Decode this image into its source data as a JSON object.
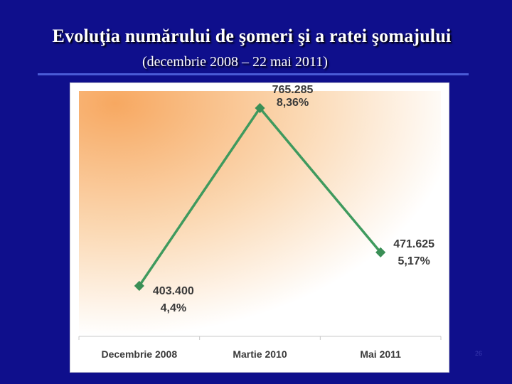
{
  "slide": {
    "title": "Evoluţia numărului de şomeri şi a ratei şomajului",
    "subtitle": "(decembrie 2008 – 22 mai 2011)",
    "page_number": "26"
  },
  "colors": {
    "background": "#0f0f8c",
    "line": "#3f9a5e",
    "marker": "#3a8f56"
  },
  "chart_data": {
    "type": "line",
    "categories": [
      "Decembrie 2008",
      "Martie 2010",
      "Mai 2011"
    ],
    "series": [
      {
        "values": [
          403400,
          765285,
          471625
        ],
        "labels": [
          "403.400",
          "765.285",
          "471.625"
        ],
        "rates": [
          "4,4%",
          "8,36%",
          "5,17%"
        ]
      }
    ],
    "ylim": [
      380000,
      790000
    ],
    "grid": false,
    "legend": "none"
  }
}
